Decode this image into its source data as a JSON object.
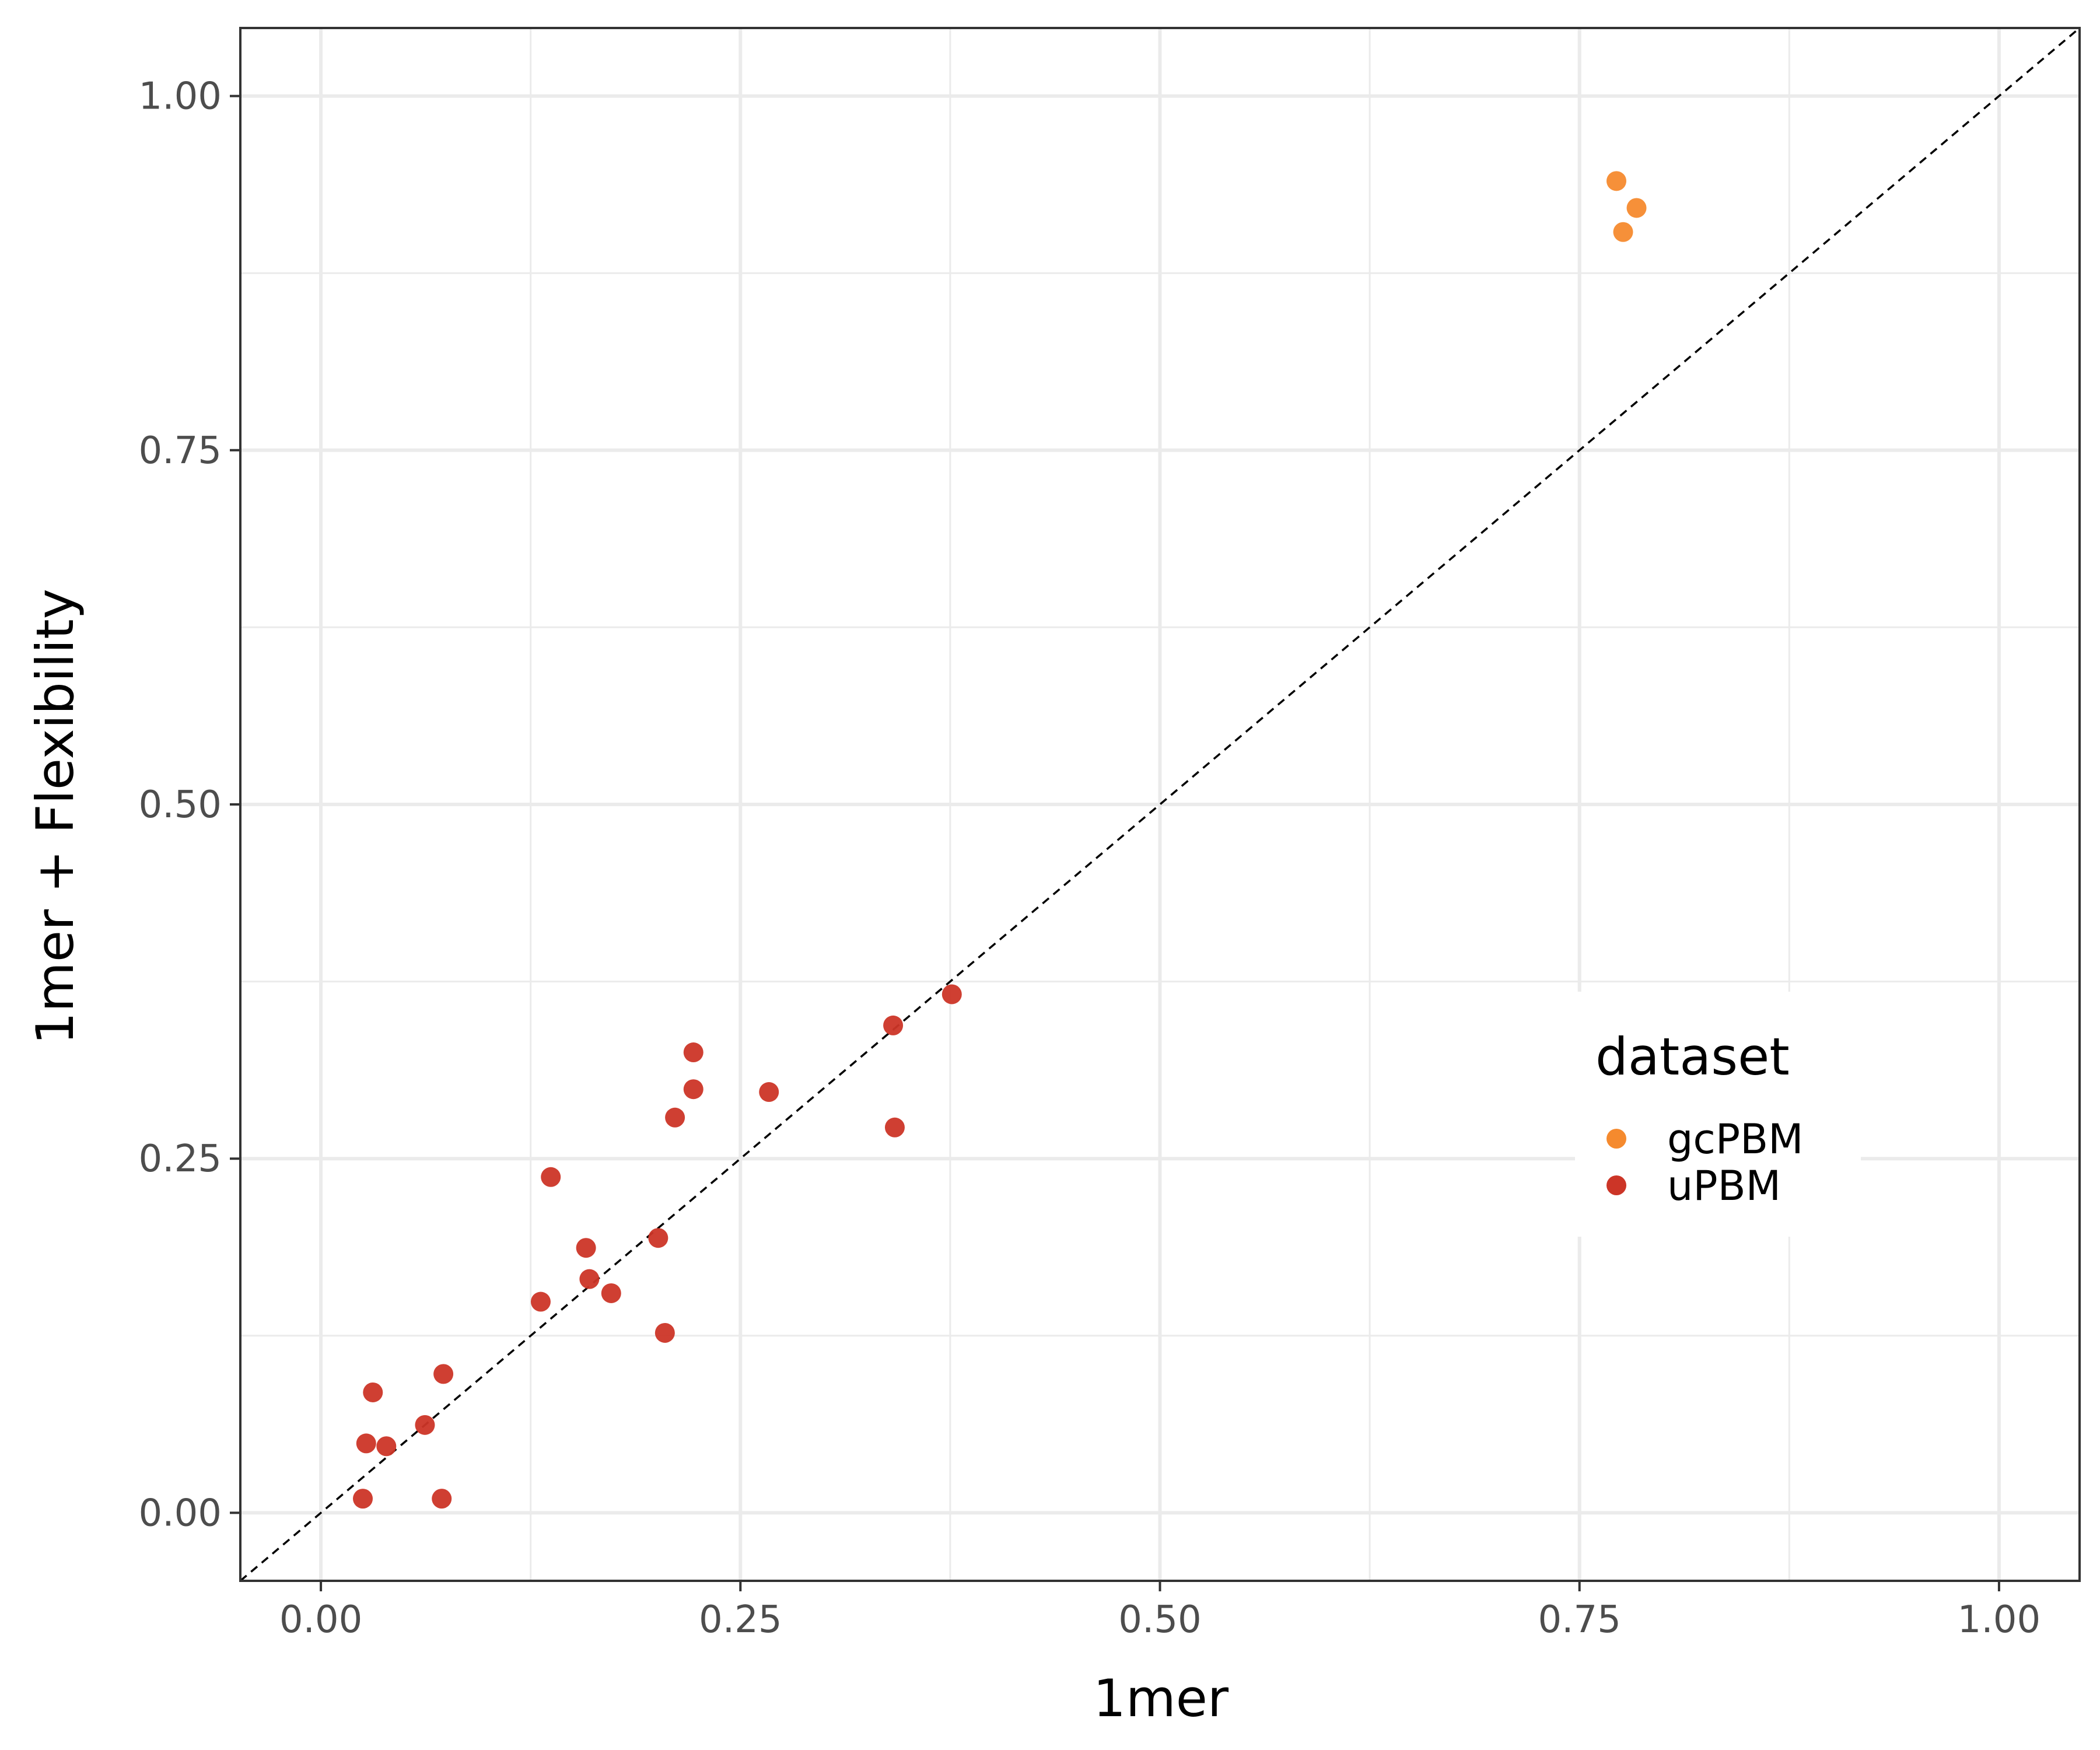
{
  "chart_data": {
    "type": "scatter",
    "title": "",
    "xlabel": "1mer",
    "ylabel": "1mer + Flexibility",
    "xlim": [
      -0.048,
      1.048
    ],
    "ylim": [
      -0.048,
      1.048
    ],
    "x_ticks": [
      "0.00",
      "0.25",
      "0.50",
      "0.75",
      "1.00"
    ],
    "y_ticks": [
      "0.00",
      "0.25",
      "0.50",
      "0.75",
      "1.00"
    ],
    "x_tick_values": [
      0,
      0.25,
      0.5,
      0.75,
      1.0
    ],
    "y_tick_values": [
      0,
      0.25,
      0.5,
      0.75,
      1.0
    ],
    "grid": true,
    "reference_line": "y = x (dashed)",
    "legend": {
      "title": "dataset",
      "position": "right"
    },
    "series": [
      {
        "name": "gcPBM",
        "color": "#F58A2E",
        "points": [
          {
            "x": 0.772,
            "y": 0.94
          },
          {
            "x": 0.784,
            "y": 0.921
          },
          {
            "x": 0.776,
            "y": 0.904
          }
        ]
      },
      {
        "name": "uPBM",
        "color": "#CC3527",
        "points": [
          {
            "x": 0.376,
            "y": 0.366
          },
          {
            "x": 0.341,
            "y": 0.344
          },
          {
            "x": 0.342,
            "y": 0.272
          },
          {
            "x": 0.222,
            "y": 0.325
          },
          {
            "x": 0.222,
            "y": 0.299
          },
          {
            "x": 0.267,
            "y": 0.297
          },
          {
            "x": 0.211,
            "y": 0.279
          },
          {
            "x": 0.137,
            "y": 0.237
          },
          {
            "x": 0.201,
            "y": 0.194
          },
          {
            "x": 0.158,
            "y": 0.187
          },
          {
            "x": 0.16,
            "y": 0.165
          },
          {
            "x": 0.173,
            "y": 0.155
          },
          {
            "x": 0.131,
            "y": 0.149
          },
          {
            "x": 0.205,
            "y": 0.127
          },
          {
            "x": 0.073,
            "y": 0.098
          },
          {
            "x": 0.031,
            "y": 0.085
          },
          {
            "x": 0.062,
            "y": 0.062
          },
          {
            "x": 0.027,
            "y": 0.049
          },
          {
            "x": 0.039,
            "y": 0.047
          },
          {
            "x": 0.025,
            "y": 0.01
          },
          {
            "x": 0.072,
            "y": 0.01
          }
        ]
      }
    ]
  }
}
